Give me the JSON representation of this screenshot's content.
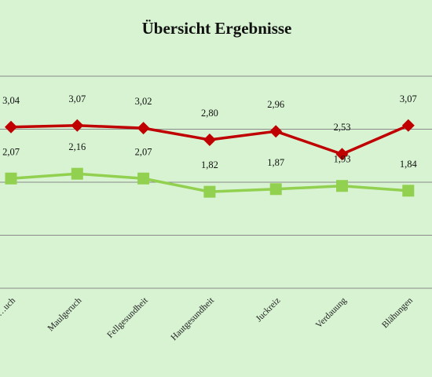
{
  "chart_data": {
    "type": "line",
    "title": "Übersicht Ergebnisse",
    "categories": [
      "…uch",
      "Maulgeruch",
      "Fellgesundheit",
      "Hautgesundheit",
      "Juckreiz",
      "Verdauung",
      "Blähungen"
    ],
    "series": [
      {
        "color": "#c00000",
        "marker": "diamond",
        "values": [
          3.04,
          3.07,
          3.02,
          2.8,
          2.96,
          2.53,
          3.07
        ],
        "labels": [
          "3,04",
          "3,07",
          "3,02",
          "2,80",
          "2,96",
          "2,53",
          "3,07"
        ]
      },
      {
        "color": "#92d050",
        "marker": "square",
        "values": [
          2.07,
          2.16,
          2.07,
          1.82,
          1.87,
          1.93,
          1.84
        ],
        "labels": [
          "2,07",
          "2,16",
          "2,07",
          "1,82",
          "1,87",
          "1,93",
          "1,84"
        ]
      }
    ],
    "xlabel": "",
    "ylabel": "",
    "ylim": [
      0,
      4
    ],
    "grid": true,
    "legend": "none",
    "background_color": "#d7f3d2",
    "grid_color": "#8a8a8a"
  }
}
